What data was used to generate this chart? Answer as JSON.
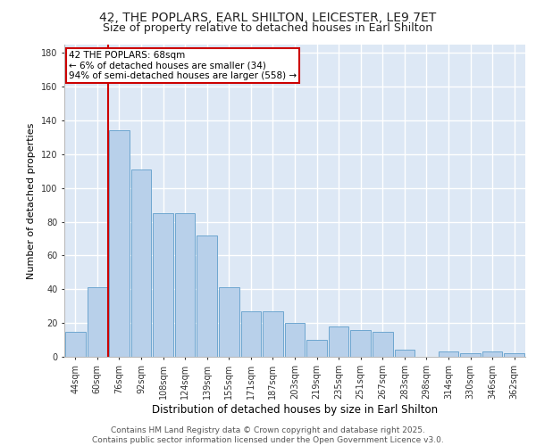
{
  "title_line1": "42, THE POPLARS, EARL SHILTON, LEICESTER, LE9 7ET",
  "title_line2": "Size of property relative to detached houses in Earl Shilton",
  "xlabel": "Distribution of detached houses by size in Earl Shilton",
  "ylabel": "Number of detached properties",
  "categories": [
    "44sqm",
    "60sqm",
    "76sqm",
    "92sqm",
    "108sqm",
    "124sqm",
    "139sqm",
    "155sqm",
    "171sqm",
    "187sqm",
    "203sqm",
    "219sqm",
    "235sqm",
    "251sqm",
    "267sqm",
    "283sqm",
    "298sqm",
    "314sqm",
    "330sqm",
    "346sqm",
    "362sqm"
  ],
  "values": [
    15,
    41,
    134,
    111,
    85,
    85,
    72,
    41,
    27,
    27,
    20,
    10,
    18,
    16,
    15,
    4,
    0,
    3,
    2,
    3,
    2
  ],
  "bar_color": "#b8d0ea",
  "bar_edge_color": "#6ea6d0",
  "background_color": "#dde8f5",
  "grid_color": "#ffffff",
  "vline_color": "#cc0000",
  "annotation_text": "42 THE POPLARS: 68sqm\n← 6% of detached houses are smaller (34)\n94% of semi-detached houses are larger (558) →",
  "annotation_box_color": "#cc0000",
  "ylim": [
    0,
    185
  ],
  "yticks": [
    0,
    20,
    40,
    60,
    80,
    100,
    120,
    140,
    160,
    180
  ],
  "footer_line1": "Contains HM Land Registry data © Crown copyright and database right 2025.",
  "footer_line2": "Contains public sector information licensed under the Open Government Licence v3.0.",
  "title_fontsize": 10,
  "subtitle_fontsize": 9,
  "xlabel_fontsize": 8.5,
  "ylabel_fontsize": 8,
  "tick_fontsize": 7,
  "footer_fontsize": 6.5,
  "annotation_fontsize": 7.5
}
